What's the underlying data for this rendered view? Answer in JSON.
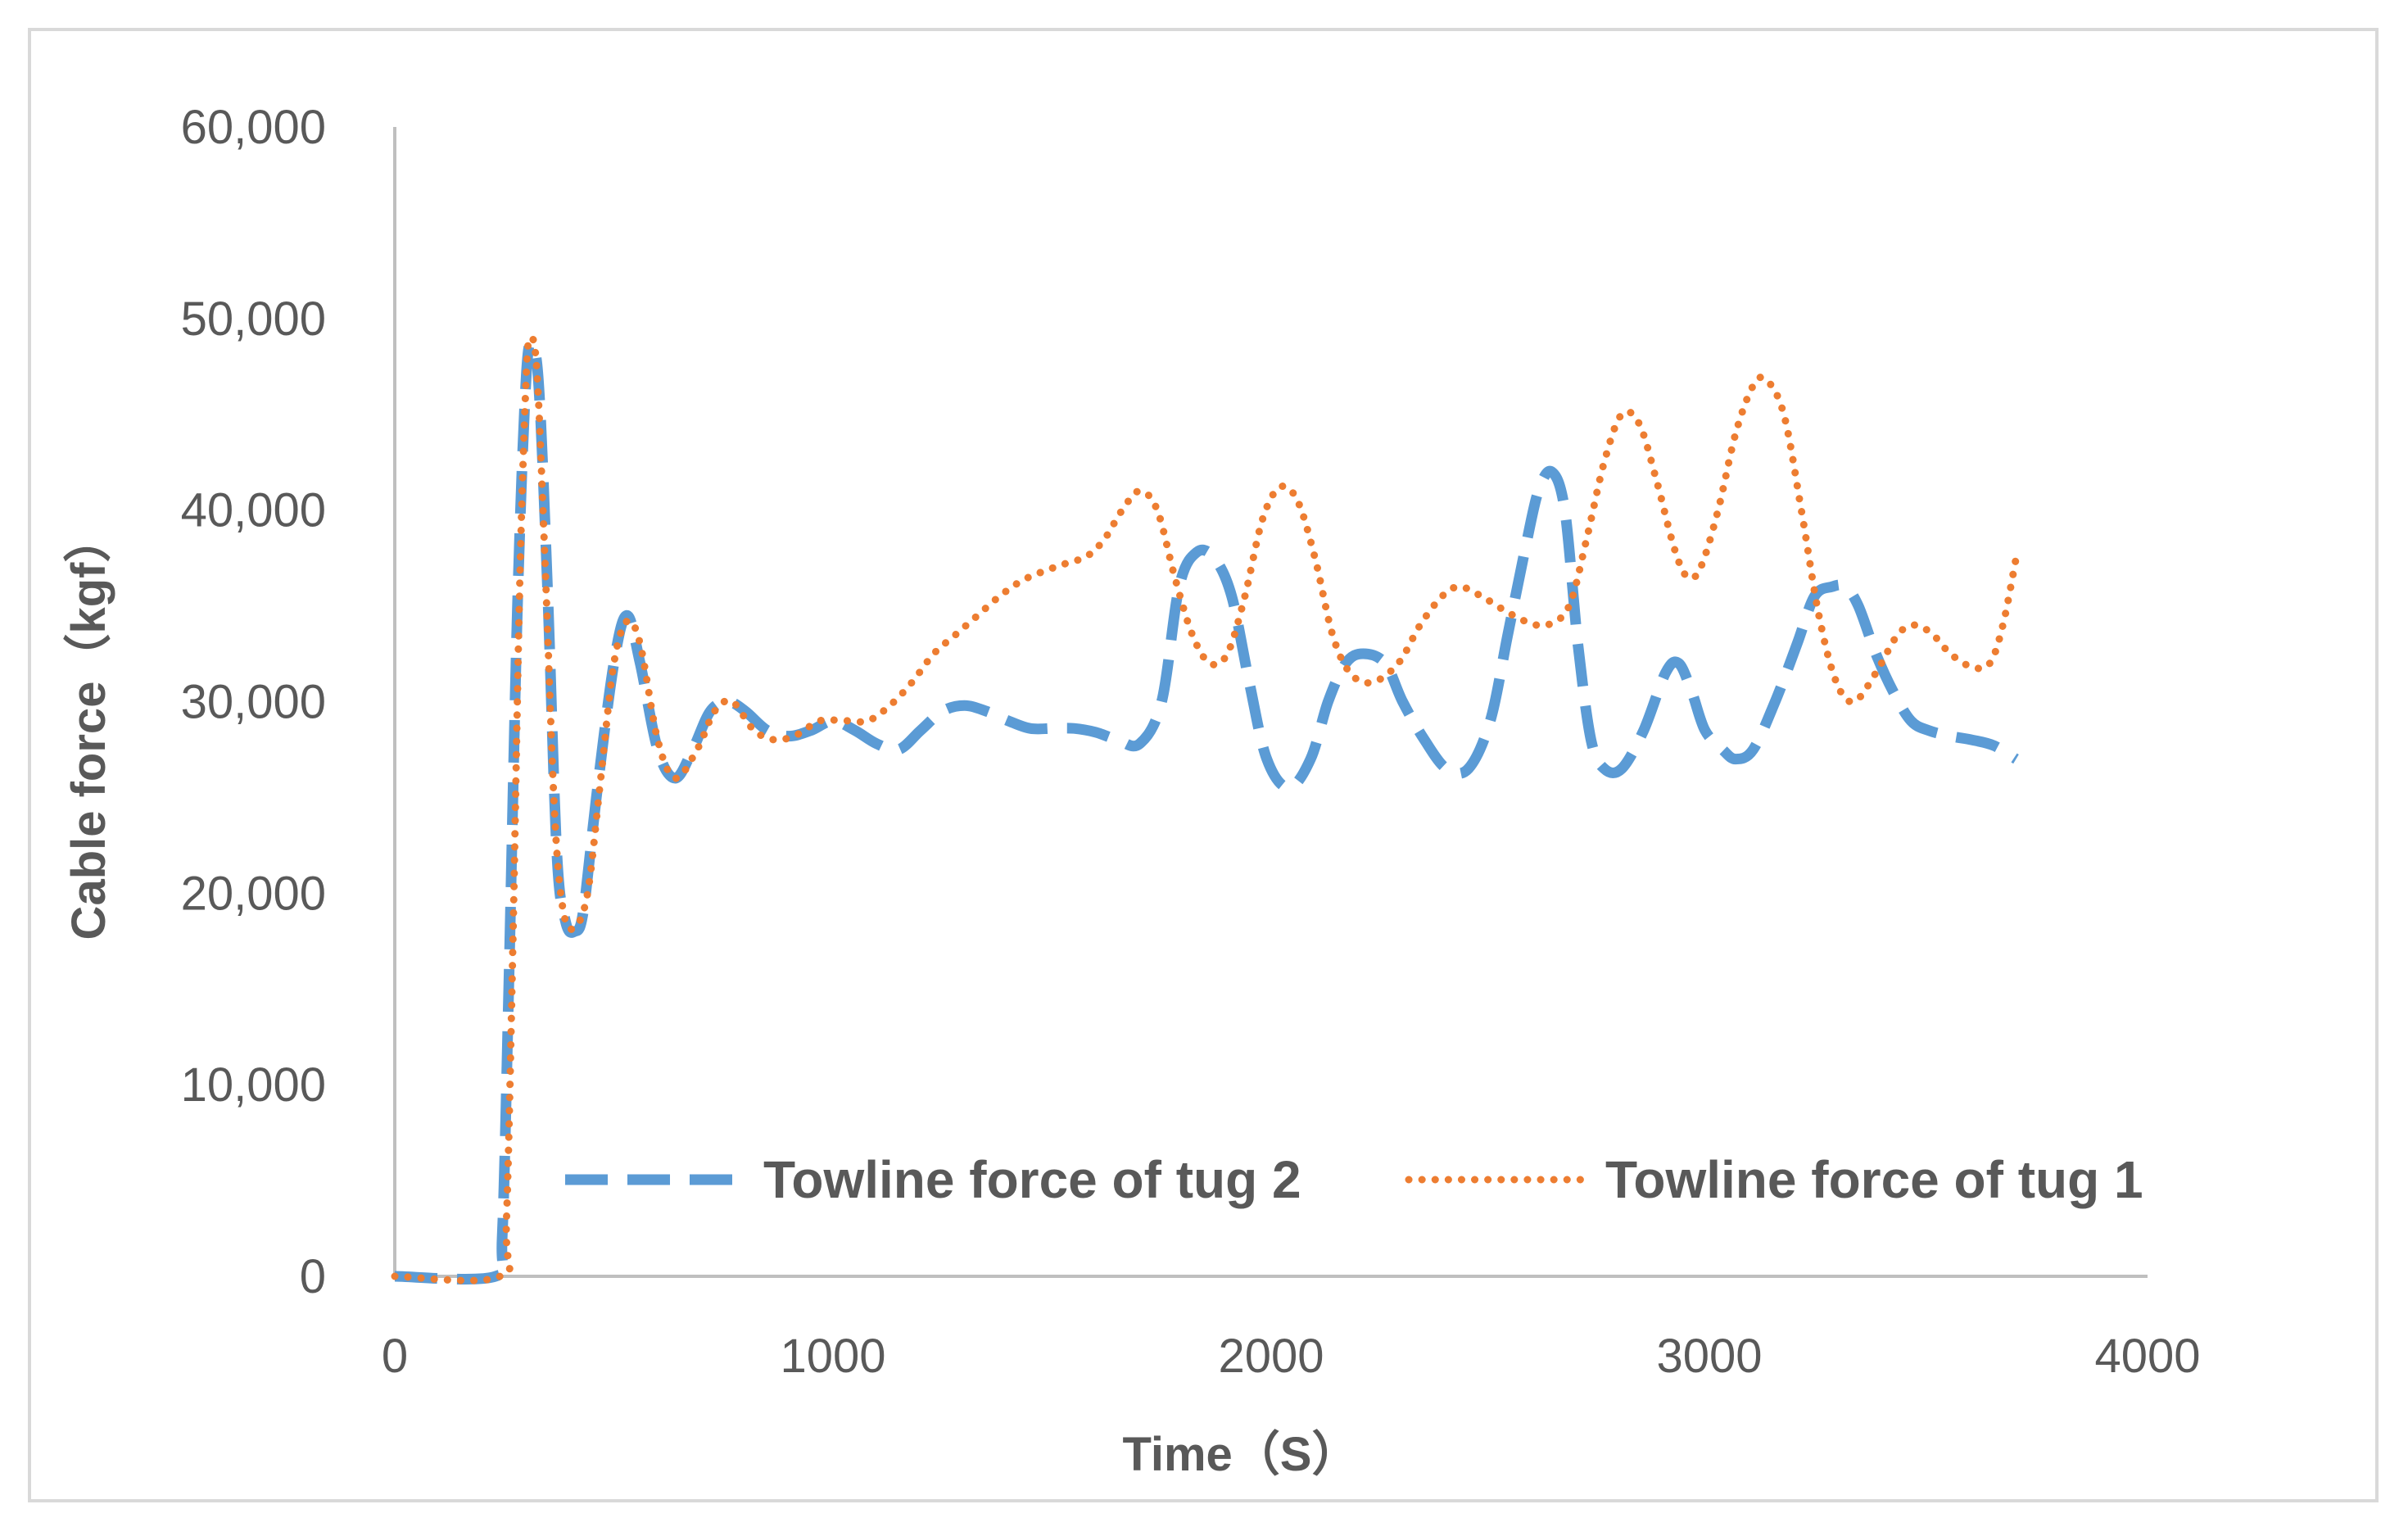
{
  "chart_data": {
    "type": "line",
    "title": "",
    "xlabel": "Time（S）",
    "ylabel": "Cable force（kgf）",
    "xlim": [
      0,
      4000
    ],
    "ylim": [
      0,
      60000
    ],
    "x_ticks": [
      0,
      1000,
      2000,
      3000,
      4000
    ],
    "x_tick_labels": [
      "0",
      "1000",
      "2000",
      "3000",
      "4000"
    ],
    "y_ticks": [
      0,
      10000,
      20000,
      30000,
      40000,
      50000,
      60000
    ],
    "y_tick_labels": [
      "0",
      "10,000",
      "20,000",
      "30,000",
      "40,000",
      "50,000",
      "60,000"
    ],
    "grid": false,
    "legend_position": "bottom-inside",
    "series": [
      {
        "name": "Towline force of tug 2",
        "color": "#5b9bd5",
        "style": "dashed",
        "points": [
          [
            0,
            0
          ],
          [
            230,
            0
          ],
          [
            245,
            2000
          ],
          [
            260,
            15000
          ],
          [
            280,
            35000
          ],
          [
            300,
            47000
          ],
          [
            315,
            48500
          ],
          [
            330,
            46000
          ],
          [
            350,
            35000
          ],
          [
            370,
            22000
          ],
          [
            390,
            18500
          ],
          [
            410,
            18000
          ],
          [
            430,
            19000
          ],
          [
            460,
            25000
          ],
          [
            500,
            32000
          ],
          [
            530,
            34500
          ],
          [
            560,
            32000
          ],
          [
            600,
            27500
          ],
          [
            640,
            26000
          ],
          [
            680,
            27500
          ],
          [
            720,
            29500
          ],
          [
            760,
            30000
          ],
          [
            800,
            29500
          ],
          [
            850,
            28500
          ],
          [
            900,
            28200
          ],
          [
            950,
            28500
          ],
          [
            1000,
            29000
          ],
          [
            1050,
            28500
          ],
          [
            1100,
            27800
          ],
          [
            1150,
            27500
          ],
          [
            1200,
            28500
          ],
          [
            1250,
            29500
          ],
          [
            1300,
            29800
          ],
          [
            1350,
            29500
          ],
          [
            1400,
            29000
          ],
          [
            1450,
            28600
          ],
          [
            1500,
            28600
          ],
          [
            1550,
            28600
          ],
          [
            1600,
            28400
          ],
          [
            1650,
            28000
          ],
          [
            1700,
            27800
          ],
          [
            1750,
            30000
          ],
          [
            1790,
            36000
          ],
          [
            1830,
            37800
          ],
          [
            1870,
            37500
          ],
          [
            1910,
            35500
          ],
          [
            1950,
            31000
          ],
          [
            1990,
            27000
          ],
          [
            2040,
            25500
          ],
          [
            2090,
            27000
          ],
          [
            2130,
            30000
          ],
          [
            2170,
            32000
          ],
          [
            2210,
            32500
          ],
          [
            2260,
            32000
          ],
          [
            2300,
            30000
          ],
          [
            2350,
            28000
          ],
          [
            2400,
            26500
          ],
          [
            2450,
            26500
          ],
          [
            2500,
            29000
          ],
          [
            2540,
            33500
          ],
          [
            2580,
            38000
          ],
          [
            2610,
            41000
          ],
          [
            2640,
            42000
          ],
          [
            2670,
            40000
          ],
          [
            2700,
            33000
          ],
          [
            2730,
            28000
          ],
          [
            2760,
            26500
          ],
          [
            2800,
            26500
          ],
          [
            2850,
            28500
          ],
          [
            2900,
            31500
          ],
          [
            2930,
            32000
          ],
          [
            2960,
            30500
          ],
          [
            2990,
            28500
          ],
          [
            3030,
            27500
          ],
          [
            3060,
            27000
          ],
          [
            3100,
            27500
          ],
          [
            3150,
            30000
          ],
          [
            3200,
            33000
          ],
          [
            3240,
            35500
          ],
          [
            3280,
            36000
          ],
          [
            3310,
            36000
          ],
          [
            3340,
            35000
          ],
          [
            3380,
            32500
          ],
          [
            3420,
            30500
          ],
          [
            3460,
            29000
          ],
          [
            3500,
            28500
          ],
          [
            3550,
            28200
          ],
          [
            3600,
            28000
          ],
          [
            3650,
            27700
          ],
          [
            3700,
            27000
          ]
        ]
      },
      {
        "name": "Towline force of tug 1",
        "color": "#ed7d31",
        "style": "dotted",
        "points": [
          [
            0,
            0
          ],
          [
            240,
            0
          ],
          [
            255,
            3000
          ],
          [
            270,
            18000
          ],
          [
            285,
            36000
          ],
          [
            300,
            47000
          ],
          [
            310,
            49000
          ],
          [
            325,
            47000
          ],
          [
            345,
            36000
          ],
          [
            365,
            24000
          ],
          [
            385,
            19000
          ],
          [
            410,
            18200
          ],
          [
            440,
            20000
          ],
          [
            470,
            26000
          ],
          [
            500,
            32000
          ],
          [
            530,
            34200
          ],
          [
            560,
            33000
          ],
          [
            600,
            28000
          ],
          [
            640,
            26000
          ],
          [
            690,
            27500
          ],
          [
            730,
            29500
          ],
          [
            770,
            30000
          ],
          [
            820,
            28500
          ],
          [
            870,
            28000
          ],
          [
            920,
            28300
          ],
          [
            970,
            29000
          ],
          [
            1030,
            29000
          ],
          [
            1080,
            29000
          ],
          [
            1130,
            29800
          ],
          [
            1180,
            31000
          ],
          [
            1230,
            32500
          ],
          [
            1280,
            33500
          ],
          [
            1330,
            34500
          ],
          [
            1380,
            35500
          ],
          [
            1430,
            36300
          ],
          [
            1480,
            36800
          ],
          [
            1530,
            37200
          ],
          [
            1580,
            37600
          ],
          [
            1620,
            38500
          ],
          [
            1660,
            40000
          ],
          [
            1700,
            41000
          ],
          [
            1740,
            40000
          ],
          [
            1780,
            36500
          ],
          [
            1820,
            33500
          ],
          [
            1860,
            32000
          ],
          [
            1900,
            32500
          ],
          [
            1940,
            35500
          ],
          [
            1980,
            39500
          ],
          [
            2020,
            41200
          ],
          [
            2060,
            40500
          ],
          [
            2100,
            37500
          ],
          [
            2140,
            33500
          ],
          [
            2180,
            31500
          ],
          [
            2230,
            31000
          ],
          [
            2290,
            32000
          ],
          [
            2340,
            34000
          ],
          [
            2390,
            35500
          ],
          [
            2430,
            36000
          ],
          [
            2480,
            35500
          ],
          [
            2530,
            34800
          ],
          [
            2580,
            34200
          ],
          [
            2630,
            34000
          ],
          [
            2680,
            35000
          ],
          [
            2720,
            38500
          ],
          [
            2760,
            42500
          ],
          [
            2800,
            45000
          ],
          [
            2840,
            44500
          ],
          [
            2880,
            41500
          ],
          [
            2920,
            38000
          ],
          [
            2950,
            36500
          ],
          [
            2980,
            37000
          ],
          [
            3020,
            40000
          ],
          [
            3060,
            44000
          ],
          [
            3100,
            46500
          ],
          [
            3130,
            46800
          ],
          [
            3170,
            45000
          ],
          [
            3210,
            40000
          ],
          [
            3250,
            34500
          ],
          [
            3290,
            31000
          ],
          [
            3330,
            30000
          ],
          [
            3380,
            31500
          ],
          [
            3430,
            33500
          ],
          [
            3470,
            34000
          ],
          [
            3510,
            33500
          ],
          [
            3550,
            32500
          ],
          [
            3600,
            31800
          ],
          [
            3640,
            32000
          ],
          [
            3670,
            34000
          ],
          [
            3700,
            37500
          ]
        ]
      }
    ]
  }
}
